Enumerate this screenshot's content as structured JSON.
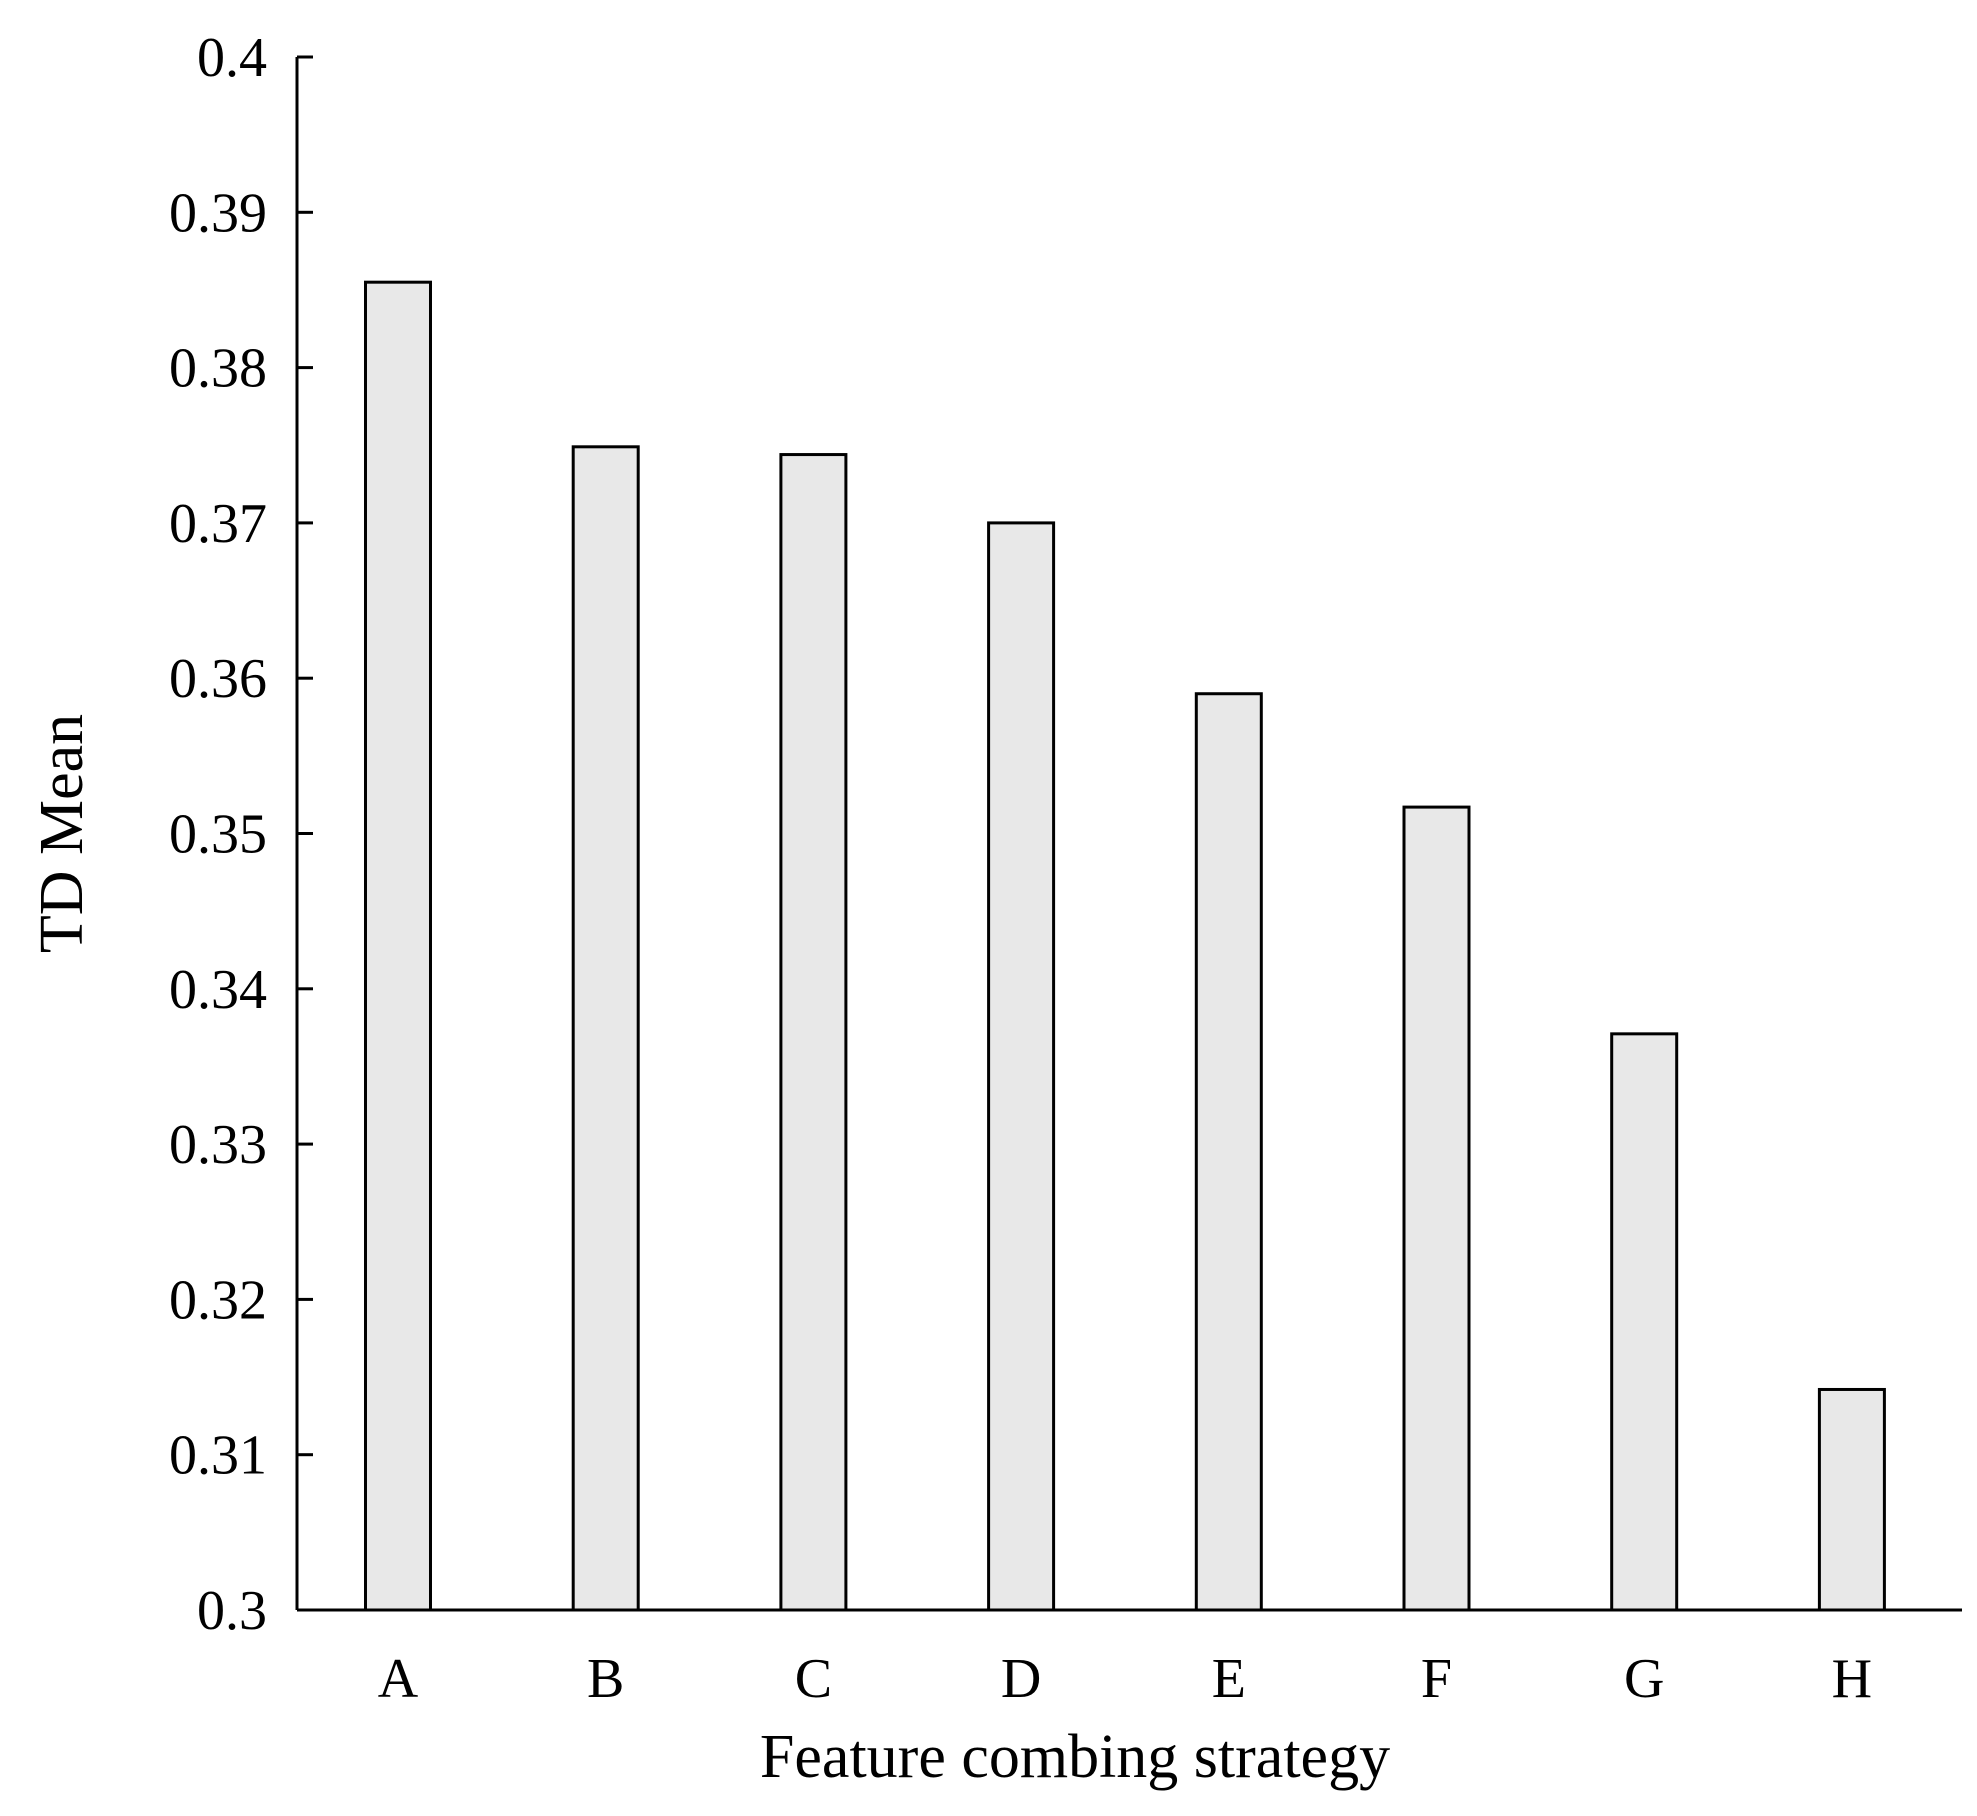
{
  "chart_data": {
    "type": "bar",
    "categories": [
      "A",
      "B",
      "C",
      "D",
      "E",
      "F",
      "G",
      "H"
    ],
    "values": [
      0.3855,
      0.3749,
      0.3744,
      0.37,
      0.359,
      0.3517,
      0.3371,
      0.3142
    ],
    "xlabel": "Feature combing strategy",
    "ylabel": "TD Mean",
    "ylim": [
      0.3,
      0.4
    ],
    "yticks": [
      "0.3",
      "0.31",
      "0.32",
      "0.33",
      "0.34",
      "0.35",
      "0.36",
      "0.37",
      "0.38",
      "0.39",
      "0.4"
    ],
    "grid": false,
    "bar_fill": "#e8e8e8",
    "bar_stroke": "#000000"
  }
}
